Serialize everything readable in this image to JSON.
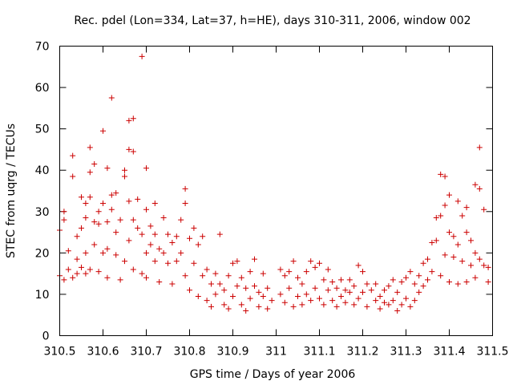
{
  "chart_data": {
    "type": "scatter",
    "title": "Rec. pdel (Lon=334, Lat=37, h=HE), days 310-311, 2006, window 002",
    "xlabel": "GPS time / Days of year 2006",
    "ylabel": "STEC from uqrg / TECUs",
    "xlim": [
      310.5,
      311.5
    ],
    "ylim": [
      0,
      70
    ],
    "xticks": [
      "310.5",
      "310.6",
      "310.7",
      "310.8",
      "310.9",
      "311",
      "311.1",
      "311.2",
      "311.3",
      "311.4",
      "311.5"
    ],
    "yticks": [
      "0",
      "10",
      "20",
      "30",
      "40",
      "50",
      "60",
      "70"
    ],
    "grid": false,
    "legend": "none",
    "marker": "+",
    "color": "#cc0000",
    "points": [
      [
        310.5,
        14.5
      ],
      [
        310.5,
        25.5
      ],
      [
        310.51,
        30.0
      ],
      [
        310.51,
        28.0
      ],
      [
        310.51,
        13.5
      ],
      [
        310.52,
        16.0
      ],
      [
        310.52,
        20.5
      ],
      [
        310.53,
        14.0
      ],
      [
        310.53,
        43.5
      ],
      [
        310.53,
        38.5
      ],
      [
        310.54,
        18.5
      ],
      [
        310.54,
        24.0
      ],
      [
        310.54,
        15.0
      ],
      [
        310.55,
        33.5
      ],
      [
        310.55,
        26.0
      ],
      [
        310.55,
        16.5
      ],
      [
        310.56,
        28.5
      ],
      [
        310.56,
        32.0
      ],
      [
        310.56,
        20.0
      ],
      [
        310.56,
        15.0
      ],
      [
        310.57,
        33.5
      ],
      [
        310.57,
        45.5
      ],
      [
        310.57,
        39.5
      ],
      [
        310.57,
        16.0
      ],
      [
        310.58,
        41.5
      ],
      [
        310.58,
        27.5
      ],
      [
        310.58,
        22.0
      ],
      [
        310.59,
        15.5
      ],
      [
        310.59,
        30.0
      ],
      [
        310.59,
        27.0
      ],
      [
        310.6,
        49.5
      ],
      [
        310.6,
        32.0
      ],
      [
        310.6,
        20.0
      ],
      [
        310.61,
        40.5
      ],
      [
        310.61,
        27.5
      ],
      [
        310.61,
        21.0
      ],
      [
        310.61,
        14.0
      ],
      [
        310.62,
        34.0
      ],
      [
        310.62,
        57.5
      ],
      [
        310.62,
        30.5
      ],
      [
        310.63,
        34.5
      ],
      [
        310.63,
        25.0
      ],
      [
        310.63,
        19.5
      ],
      [
        310.64,
        28.0
      ],
      [
        310.64,
        13.5
      ],
      [
        310.65,
        40.0
      ],
      [
        310.65,
        38.5
      ],
      [
        310.65,
        18.0
      ],
      [
        310.66,
        32.5
      ],
      [
        310.66,
        52.0
      ],
      [
        310.66,
        45.0
      ],
      [
        310.66,
        23.0
      ],
      [
        310.67,
        52.5
      ],
      [
        310.67,
        44.5
      ],
      [
        310.67,
        28.0
      ],
      [
        310.67,
        16.0
      ],
      [
        310.68,
        33.0
      ],
      [
        310.68,
        26.0
      ],
      [
        310.69,
        67.5
      ],
      [
        310.69,
        24.5
      ],
      [
        310.69,
        15.0
      ],
      [
        310.7,
        40.5
      ],
      [
        310.7,
        30.5
      ],
      [
        310.7,
        20.0
      ],
      [
        310.7,
        14.0
      ],
      [
        310.71,
        22.0
      ],
      [
        310.71,
        26.5
      ],
      [
        310.72,
        32.0
      ],
      [
        310.72,
        24.5
      ],
      [
        310.72,
        18.0
      ],
      [
        310.73,
        21.0
      ],
      [
        310.73,
        13.0
      ],
      [
        310.74,
        28.5
      ],
      [
        310.74,
        20.0
      ],
      [
        310.75,
        24.5
      ],
      [
        310.75,
        17.5
      ],
      [
        310.76,
        22.5
      ],
      [
        310.76,
        12.5
      ],
      [
        310.77,
        24.0
      ],
      [
        310.77,
        18.0
      ],
      [
        310.78,
        28.0
      ],
      [
        310.78,
        20.0
      ],
      [
        310.79,
        35.5
      ],
      [
        310.79,
        32.0
      ],
      [
        310.79,
        14.5
      ],
      [
        310.8,
        23.5
      ],
      [
        310.8,
        11.0
      ],
      [
        310.81,
        26.0
      ],
      [
        310.81,
        17.5
      ],
      [
        310.82,
        22.0
      ],
      [
        310.82,
        9.5
      ],
      [
        310.83,
        24.0
      ],
      [
        310.83,
        14.5
      ],
      [
        310.84,
        16.0
      ],
      [
        310.84,
        8.5
      ],
      [
        310.85,
        12.5
      ],
      [
        310.85,
        7.0
      ],
      [
        310.86,
        15.0
      ],
      [
        310.86,
        10.0
      ],
      [
        310.87,
        24.5
      ],
      [
        310.87,
        12.5
      ],
      [
        310.88,
        11.0
      ],
      [
        310.88,
        7.5
      ],
      [
        310.89,
        14.5
      ],
      [
        310.89,
        6.5
      ],
      [
        310.9,
        17.5
      ],
      [
        310.9,
        9.5
      ],
      [
        310.91,
        18.0
      ],
      [
        310.91,
        12.0
      ],
      [
        310.92,
        14.0
      ],
      [
        310.92,
        7.5
      ],
      [
        310.93,
        11.5
      ],
      [
        310.93,
        6.0
      ],
      [
        310.94,
        15.5
      ],
      [
        310.94,
        9.0
      ],
      [
        310.95,
        18.5
      ],
      [
        310.95,
        12.0
      ],
      [
        310.96,
        10.5
      ],
      [
        310.96,
        7.0
      ],
      [
        310.97,
        15.0
      ],
      [
        310.97,
        9.5
      ],
      [
        310.98,
        11.5
      ],
      [
        310.98,
        6.5
      ],
      [
        310.99,
        8.5
      ],
      [
        311.01,
        16.0
      ],
      [
        311.01,
        10.0
      ],
      [
        311.02,
        14.5
      ],
      [
        311.02,
        8.0
      ],
      [
        311.03,
        15.5
      ],
      [
        311.03,
        11.5
      ],
      [
        311.04,
        18.0
      ],
      [
        311.04,
        7.0
      ],
      [
        311.05,
        14.0
      ],
      [
        311.05,
        9.5
      ],
      [
        311.06,
        12.5
      ],
      [
        311.06,
        7.5
      ],
      [
        311.07,
        15.5
      ],
      [
        311.07,
        10.0
      ],
      [
        311.08,
        18.0
      ],
      [
        311.08,
        8.5
      ],
      [
        311.09,
        16.5
      ],
      [
        311.09,
        11.5
      ],
      [
        311.1,
        17.5
      ],
      [
        311.1,
        9.0
      ],
      [
        311.11,
        13.5
      ],
      [
        311.11,
        7.5
      ],
      [
        311.12,
        16.0
      ],
      [
        311.12,
        11.0
      ],
      [
        311.13,
        13.0
      ],
      [
        311.13,
        8.5
      ],
      [
        311.14,
        11.5
      ],
      [
        311.14,
        7.0
      ],
      [
        311.15,
        13.5
      ],
      [
        311.15,
        9.5
      ],
      [
        311.16,
        11.0
      ],
      [
        311.16,
        8.0
      ],
      [
        311.17,
        13.5
      ],
      [
        311.17,
        10.5
      ],
      [
        311.18,
        12.0
      ],
      [
        311.18,
        7.5
      ],
      [
        311.19,
        17.0
      ],
      [
        311.19,
        9.0
      ],
      [
        311.2,
        15.5
      ],
      [
        311.2,
        10.5
      ],
      [
        311.21,
        12.5
      ],
      [
        311.21,
        7.0
      ],
      [
        311.22,
        11.0
      ],
      [
        311.23,
        12.5
      ],
      [
        311.23,
        8.5
      ],
      [
        311.24,
        9.5
      ],
      [
        311.24,
        6.5
      ],
      [
        311.25,
        11.0
      ],
      [
        311.25,
        8.0
      ],
      [
        311.26,
        12.0
      ],
      [
        311.26,
        7.5
      ],
      [
        311.27,
        13.5
      ],
      [
        311.27,
        8.5
      ],
      [
        311.28,
        10.5
      ],
      [
        311.28,
        6.0
      ],
      [
        311.29,
        13.0
      ],
      [
        311.29,
        7.5
      ],
      [
        311.3,
        14.0
      ],
      [
        311.3,
        9.0
      ],
      [
        311.31,
        15.5
      ],
      [
        311.31,
        7.0
      ],
      [
        311.32,
        12.5
      ],
      [
        311.32,
        8.5
      ],
      [
        311.33,
        14.5
      ],
      [
        311.33,
        10.5
      ],
      [
        311.34,
        17.5
      ],
      [
        311.34,
        12.0
      ],
      [
        311.35,
        18.5
      ],
      [
        311.35,
        13.5
      ],
      [
        311.36,
        22.5
      ],
      [
        311.36,
        15.5
      ],
      [
        311.37,
        28.5
      ],
      [
        311.37,
        23.0
      ],
      [
        311.38,
        39.0
      ],
      [
        311.38,
        29.0
      ],
      [
        311.38,
        14.5
      ],
      [
        311.39,
        38.5
      ],
      [
        311.39,
        31.5
      ],
      [
        311.39,
        19.5
      ],
      [
        311.4,
        34.0
      ],
      [
        311.4,
        25.0
      ],
      [
        311.4,
        13.0
      ],
      [
        311.41,
        24.0
      ],
      [
        311.41,
        19.0
      ],
      [
        311.42,
        32.5
      ],
      [
        311.42,
        22.0
      ],
      [
        311.42,
        12.5
      ],
      [
        311.43,
        29.0
      ],
      [
        311.43,
        18.0
      ],
      [
        311.44,
        31.0
      ],
      [
        311.44,
        25.0
      ],
      [
        311.44,
        13.0
      ],
      [
        311.45,
        23.0
      ],
      [
        311.45,
        17.0
      ],
      [
        311.46,
        36.5
      ],
      [
        311.46,
        20.0
      ],
      [
        311.46,
        14.0
      ],
      [
        311.47,
        45.5
      ],
      [
        311.47,
        35.5
      ],
      [
        311.47,
        18.5
      ],
      [
        311.48,
        30.5
      ],
      [
        311.48,
        17.0
      ],
      [
        311.49,
        16.5
      ],
      [
        311.49,
        13.0
      ]
    ]
  }
}
